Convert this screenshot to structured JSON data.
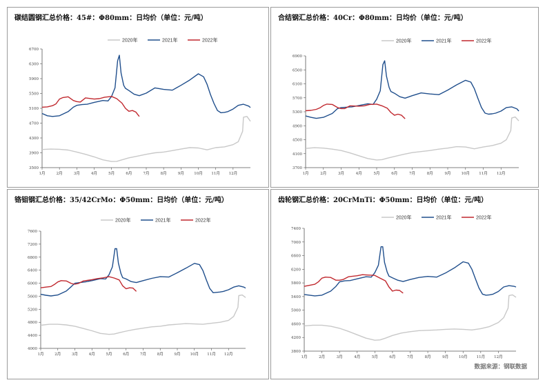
{
  "source_note": "数据来源：钢联数据",
  "legend_labels": [
    "2020年",
    "2021年",
    "2022年"
  ],
  "colors": {
    "2020": "#c8c8c8",
    "2021": "#1f4e8c",
    "2022": "#c0272d"
  },
  "chart_data": [
    {
      "type": "line",
      "title": "碳结圆钢汇总价格：45#：Φ80mm：日均价（单位：元/吨）",
      "ylim": [
        3500,
        6700
      ],
      "yticks": [
        "3500",
        "3900",
        "4300",
        "4700",
        "5100",
        "5500",
        "5900",
        "6300",
        "6700"
      ],
      "xticks": [
        "1月",
        "2月",
        "3月",
        "4月",
        "5月",
        "6月",
        "7月",
        "8月",
        "9月",
        "10月",
        "11月",
        "12月"
      ],
      "legend": "top-center",
      "series": [
        {
          "name": "2020年",
          "x": [
            1,
            1.5,
            2,
            2.5,
            3,
            3.5,
            4,
            4.5,
            5,
            5.3,
            5.6,
            6,
            6.5,
            7,
            7.5,
            8,
            8.5,
            9,
            9.5,
            10,
            10.5,
            11,
            11.5,
            12,
            12.3,
            12.55,
            12.6,
            12.8,
            13
          ],
          "values": [
            3990,
            4000,
            3995,
            3975,
            3920,
            3860,
            3790,
            3710,
            3665,
            3670,
            3710,
            3765,
            3810,
            3860,
            3900,
            3920,
            3960,
            4000,
            4040,
            4030,
            3980,
            4040,
            4060,
            4120,
            4200,
            4480,
            4860,
            4880,
            4750
          ]
        },
        {
          "name": "2021年",
          "x": [
            1,
            1.3,
            1.6,
            2,
            2.5,
            2.8,
            3,
            3.3,
            3.6,
            4,
            4.5,
            4.8,
            5,
            5.2,
            5.35,
            5.45,
            5.55,
            5.7,
            5.8,
            6,
            6.3,
            6.6,
            7,
            7.5,
            8,
            8.5,
            9,
            9.5,
            10,
            10.3,
            10.5,
            10.7,
            10.9,
            11.1,
            11.3,
            11.5,
            11.7,
            12,
            12.3,
            12.6,
            12.9,
            13
          ],
          "values": [
            4960,
            4900,
            4880,
            4900,
            5010,
            5130,
            5180,
            5200,
            5210,
            5260,
            5310,
            5300,
            5420,
            5650,
            6380,
            6530,
            6050,
            5720,
            5640,
            5580,
            5480,
            5440,
            5510,
            5650,
            5610,
            5590,
            5720,
            5860,
            6030,
            5950,
            5750,
            5470,
            5230,
            5040,
            4980,
            4990,
            5010,
            5080,
            5180,
            5210,
            5160,
            5120
          ]
        },
        {
          "name": "2022年",
          "x": [
            1,
            1.3,
            1.6,
            1.8,
            2,
            2.2,
            2.5,
            2.8,
            3,
            3.2,
            3.5,
            4,
            4.3,
            4.6,
            5,
            5.3,
            5.6,
            5.8,
            6,
            6.2,
            6.4,
            6.6
          ],
          "values": [
            5130,
            5140,
            5170,
            5220,
            5350,
            5390,
            5410,
            5310,
            5280,
            5270,
            5380,
            5350,
            5360,
            5400,
            5420,
            5360,
            5240,
            5100,
            5020,
            5040,
            5000,
            4880
          ]
        }
      ]
    },
    {
      "type": "line",
      "title": "合结钢汇总价格：40Cr：Φ80mm：日均价（单位：元/吨）",
      "ylim": [
        3700,
        6900
      ],
      "yticks": [
        "3700",
        "4100",
        "4500",
        "4900",
        "5300",
        "5700",
        "6100",
        "6500",
        "6900"
      ],
      "xticks": [
        "1月",
        "2月",
        "3月",
        "4月",
        "5月",
        "6月",
        "7月",
        "8月",
        "9月",
        "10月",
        "11月",
        "12月"
      ],
      "legend": "top-center",
      "series": [
        {
          "name": "2020年",
          "x": [
            1,
            1.5,
            2,
            2.5,
            3,
            3.5,
            4,
            4.5,
            5,
            5.3,
            5.6,
            6,
            6.5,
            7,
            7.5,
            8,
            8.5,
            9,
            9.5,
            10,
            10.5,
            11,
            11.5,
            12,
            12.3,
            12.55,
            12.6,
            12.8,
            13
          ],
          "values": [
            4250,
            4270,
            4260,
            4230,
            4190,
            4120,
            4040,
            3960,
            3920,
            3930,
            3970,
            4020,
            4080,
            4130,
            4160,
            4190,
            4230,
            4260,
            4300,
            4290,
            4240,
            4290,
            4330,
            4400,
            4500,
            4760,
            5120,
            5150,
            5040
          ]
        },
        {
          "name": "2021年",
          "x": [
            1,
            1.3,
            1.6,
            2,
            2.5,
            2.8,
            3,
            3.3,
            3.6,
            4,
            4.5,
            4.8,
            5,
            5.2,
            5.35,
            5.45,
            5.55,
            5.7,
            5.8,
            6,
            6.3,
            6.6,
            7,
            7.5,
            8,
            8.5,
            9,
            9.5,
            10,
            10.3,
            10.5,
            10.7,
            10.9,
            11.1,
            11.3,
            11.5,
            11.7,
            12,
            12.3,
            12.6,
            12.9,
            13
          ],
          "values": [
            5180,
            5140,
            5110,
            5140,
            5250,
            5390,
            5420,
            5430,
            5440,
            5480,
            5530,
            5510,
            5660,
            5900,
            6650,
            6760,
            6320,
            6000,
            5880,
            5830,
            5730,
            5690,
            5760,
            5840,
            5810,
            5790,
            5920,
            6070,
            6200,
            6150,
            5960,
            5680,
            5420,
            5260,
            5230,
            5240,
            5260,
            5320,
            5420,
            5440,
            5380,
            5320
          ]
        },
        {
          "name": "2022年",
          "x": [
            1,
            1.3,
            1.6,
            1.8,
            2,
            2.2,
            2.5,
            2.8,
            3,
            3.2,
            3.5,
            4,
            4.3,
            4.6,
            5,
            5.3,
            5.6,
            5.8,
            6,
            6.2,
            6.4,
            6.6
          ],
          "values": [
            5330,
            5340,
            5370,
            5410,
            5480,
            5520,
            5510,
            5420,
            5390,
            5390,
            5470,
            5460,
            5470,
            5510,
            5520,
            5470,
            5400,
            5280,
            5200,
            5230,
            5200,
            5100
          ]
        }
      ]
    },
    {
      "type": "line",
      "title": "铬钼钢汇总价格：35/42CrMo：Φ50mm：日均价（单位：元/吨）",
      "ylim": [
        4000,
        7600
      ],
      "yticks": [
        "4000",
        "4400",
        "4800",
        "5200",
        "5600",
        "6000",
        "6400",
        "6800",
        "7200",
        "7600"
      ],
      "xticks": [
        "1月",
        "2月",
        "3月",
        "4月",
        "5月",
        "6月",
        "7月",
        "8月",
        "9月",
        "10月",
        "11月",
        "12月"
      ],
      "legend": "top-center",
      "series": [
        {
          "name": "2020年",
          "x": [
            1,
            1.5,
            2,
            2.5,
            3,
            3.5,
            4,
            4.5,
            5,
            5.3,
            5.6,
            6,
            6.5,
            7,
            7.5,
            8,
            8.5,
            9,
            9.5,
            10,
            10.5,
            11,
            11.5,
            12,
            12.3,
            12.55,
            12.6,
            12.8,
            13
          ],
          "values": [
            4710,
            4740,
            4740,
            4720,
            4680,
            4610,
            4540,
            4460,
            4430,
            4440,
            4480,
            4530,
            4580,
            4620,
            4660,
            4680,
            4720,
            4740,
            4760,
            4750,
            4740,
            4770,
            4800,
            4860,
            4980,
            5260,
            5620,
            5640,
            5560
          ]
        },
        {
          "name": "2021年",
          "x": [
            1,
            1.3,
            1.6,
            2,
            2.5,
            2.8,
            3,
            3.3,
            3.6,
            4,
            4.5,
            4.8,
            5,
            5.2,
            5.35,
            5.45,
            5.55,
            5.7,
            5.8,
            6,
            6.3,
            6.6,
            7,
            7.5,
            8,
            8.5,
            9,
            9.5,
            10,
            10.3,
            10.5,
            10.7,
            10.9,
            11.1,
            11.3,
            11.5,
            11.7,
            12,
            12.3,
            12.6,
            12.9,
            13
          ],
          "values": [
            5660,
            5630,
            5610,
            5640,
            5760,
            5900,
            6000,
            6020,
            6040,
            6080,
            6140,
            6130,
            6260,
            6500,
            7060,
            7060,
            6620,
            6300,
            6170,
            6130,
            6050,
            6020,
            6080,
            6150,
            6200,
            6190,
            6320,
            6460,
            6610,
            6570,
            6390,
            6100,
            5840,
            5710,
            5720,
            5730,
            5750,
            5800,
            5880,
            5920,
            5880,
            5850
          ]
        },
        {
          "name": "2022年",
          "x": [
            1,
            1.3,
            1.6,
            1.8,
            2,
            2.2,
            2.5,
            2.8,
            3,
            3.2,
            3.5,
            4,
            4.3,
            4.6,
            5,
            5.3,
            5.6,
            5.8,
            6,
            6.2,
            6.4,
            6.6
          ],
          "values": [
            5860,
            5880,
            5900,
            5960,
            6040,
            6080,
            6070,
            5990,
            5970,
            5990,
            6070,
            6110,
            6140,
            6160,
            6200,
            6160,
            6100,
            5920,
            5830,
            5860,
            5850,
            5750
          ]
        }
      ]
    },
    {
      "type": "line",
      "title": "齿轮钢汇总价格：20CrMnTi：Φ50mm：日均价（单位：元/吨）",
      "ylim": [
        3800,
        7400
      ],
      "yticks": [
        "3800",
        "4200",
        "4600",
        "5000",
        "5400",
        "5800",
        "6200",
        "6600",
        "7000",
        "7400"
      ],
      "xticks": [
        "1月",
        "2月",
        "3月",
        "4月",
        "5月",
        "6月",
        "7月",
        "8月",
        "9月",
        "10月",
        "11月",
        "12月"
      ],
      "legend": "top-center",
      "series": [
        {
          "name": "2020年",
          "x": [
            1,
            1.5,
            2,
            2.5,
            3,
            3.5,
            4,
            4.5,
            5,
            5.3,
            5.6,
            6,
            6.5,
            7,
            7.5,
            8,
            8.5,
            9,
            9.5,
            10,
            10.5,
            11,
            11.5,
            12,
            12.3,
            12.55,
            12.6,
            12.8,
            13
          ],
          "values": [
            4540,
            4560,
            4560,
            4530,
            4470,
            4380,
            4280,
            4180,
            4120,
            4130,
            4180,
            4260,
            4330,
            4370,
            4400,
            4410,
            4420,
            4440,
            4450,
            4440,
            4420,
            4460,
            4520,
            4640,
            4780,
            5060,
            5430,
            5450,
            5380
          ]
        },
        {
          "name": "2021年",
          "x": [
            1,
            1.3,
            1.6,
            2,
            2.5,
            2.8,
            3,
            3.3,
            3.6,
            4,
            4.5,
            4.8,
            5,
            5.2,
            5.35,
            5.45,
            5.55,
            5.7,
            5.8,
            6,
            6.3,
            6.6,
            7,
            7.5,
            8,
            8.5,
            9,
            9.5,
            10,
            10.3,
            10.5,
            10.7,
            10.9,
            11.1,
            11.3,
            11.5,
            11.7,
            12,
            12.3,
            12.6,
            12.9,
            13
          ],
          "values": [
            5460,
            5440,
            5420,
            5440,
            5560,
            5700,
            5830,
            5860,
            5870,
            5920,
            5980,
            5970,
            6100,
            6320,
            6860,
            6860,
            6400,
            6120,
            6000,
            5950,
            5880,
            5840,
            5900,
            5960,
            5990,
            5970,
            6090,
            6240,
            6420,
            6380,
            6200,
            5920,
            5650,
            5470,
            5440,
            5450,
            5470,
            5550,
            5680,
            5720,
            5700,
            5680
          ]
        },
        {
          "name": "2022年",
          "x": [
            1,
            1.3,
            1.6,
            1.8,
            2,
            2.2,
            2.5,
            2.8,
            3,
            3.2,
            3.5,
            4,
            4.3,
            4.6,
            5,
            5.3,
            5.6,
            5.8,
            6,
            6.2,
            6.4,
            6.6
          ],
          "values": [
            5700,
            5730,
            5760,
            5830,
            5940,
            5970,
            5960,
            5880,
            5880,
            5900,
            5980,
            6010,
            6040,
            6030,
            6020,
            5940,
            5860,
            5680,
            5560,
            5590,
            5580,
            5500
          ]
        }
      ]
    }
  ]
}
